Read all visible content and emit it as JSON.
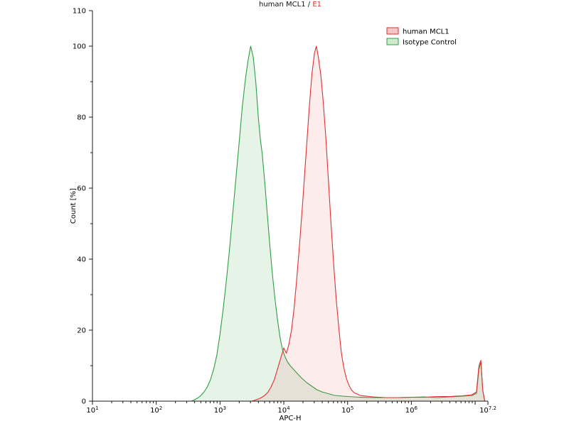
{
  "title": {
    "main": "human MCL1 / ",
    "sample": "E1",
    "sample_color": "#e03030"
  },
  "chart_data": {
    "type": "area",
    "subtype": "flow-cytometry-histogram",
    "title": "human MCL1 / E1",
    "xlabel": "APC-H",
    "ylabel": "Count [%]",
    "x_scale": "log10",
    "xlim_log": [
      1,
      7.2
    ],
    "ylim": [
      0,
      110
    ],
    "grid": false,
    "legend_position": "top-right",
    "axis_color": "#1a1a1a",
    "x_tick_base": "10",
    "x_ticks": [
      {
        "log": 1,
        "sup": "1"
      },
      {
        "log": 2,
        "sup": "2"
      },
      {
        "log": 3,
        "sup": "3"
      },
      {
        "log": 4,
        "sup": "4"
      },
      {
        "log": 5,
        "sup": "5"
      },
      {
        "log": 6,
        "sup": "6"
      },
      {
        "log": 7.2,
        "sup": "7.2"
      }
    ],
    "y_tick_labels": [
      0,
      20,
      40,
      60,
      80,
      100,
      110
    ],
    "series": [
      {
        "id": "human-mcl1",
        "name": "human MCL1",
        "stroke": "#e03030",
        "fill": "rgba(224,64,64,0.10)",
        "legend_fill": "#f6c6c6",
        "points": [
          [
            3.5,
            0
          ],
          [
            3.55,
            0.3
          ],
          [
            3.6,
            0.6
          ],
          [
            3.65,
            1.0
          ],
          [
            3.7,
            1.6
          ],
          [
            3.75,
            2.5
          ],
          [
            3.8,
            4.0
          ],
          [
            3.85,
            6.0
          ],
          [
            3.9,
            9.0
          ],
          [
            3.95,
            12.0
          ],
          [
            4.0,
            15.0
          ],
          [
            4.04,
            13.5
          ],
          [
            4.08,
            16.0
          ],
          [
            4.12,
            20.0
          ],
          [
            4.16,
            26.0
          ],
          [
            4.2,
            34.0
          ],
          [
            4.25,
            45.0
          ],
          [
            4.3,
            57.0
          ],
          [
            4.35,
            70.0
          ],
          [
            4.4,
            83.0
          ],
          [
            4.44,
            92.0
          ],
          [
            4.48,
            98.0
          ],
          [
            4.51,
            100.0
          ],
          [
            4.54,
            97.0
          ],
          [
            4.58,
            92.0
          ],
          [
            4.62,
            84.0
          ],
          [
            4.66,
            74.0
          ],
          [
            4.7,
            62.0
          ],
          [
            4.74,
            50.0
          ],
          [
            4.78,
            39.0
          ],
          [
            4.82,
            29.0
          ],
          [
            4.86,
            21.0
          ],
          [
            4.9,
            14.0
          ],
          [
            4.94,
            9.5
          ],
          [
            4.98,
            6.5
          ],
          [
            5.02,
            4.5
          ],
          [
            5.06,
            3.2
          ],
          [
            5.1,
            2.4
          ],
          [
            5.2,
            1.6
          ],
          [
            5.4,
            1.2
          ],
          [
            5.6,
            1.0
          ],
          [
            5.8,
            1.0
          ],
          [
            6.0,
            1.1
          ],
          [
            6.2,
            1.1
          ],
          [
            6.4,
            1.3
          ],
          [
            6.6,
            1.3
          ],
          [
            6.8,
            1.5
          ],
          [
            6.95,
            1.8
          ],
          [
            7.02,
            2.6
          ],
          [
            7.06,
            10.0
          ],
          [
            7.09,
            11.5
          ],
          [
            7.12,
            3.0
          ],
          [
            7.15,
            0
          ]
        ]
      },
      {
        "id": "isotype-control",
        "name": "Isotype Control",
        "stroke": "#2f9e44",
        "fill": "rgba(60,160,70,0.13)",
        "legend_fill": "#cfe9cf",
        "points": [
          [
            2.55,
            0
          ],
          [
            2.6,
            0.4
          ],
          [
            2.65,
            0.9
          ],
          [
            2.7,
            1.6
          ],
          [
            2.75,
            2.6
          ],
          [
            2.8,
            4.0
          ],
          [
            2.85,
            6.0
          ],
          [
            2.9,
            9.0
          ],
          [
            2.95,
            13.0
          ],
          [
            3.0,
            19.0
          ],
          [
            3.05,
            26.0
          ],
          [
            3.1,
            34.0
          ],
          [
            3.15,
            43.0
          ],
          [
            3.2,
            53.0
          ],
          [
            3.25,
            63.0
          ],
          [
            3.3,
            73.0
          ],
          [
            3.35,
            83.0
          ],
          [
            3.4,
            91.0
          ],
          [
            3.44,
            96.0
          ],
          [
            3.48,
            100.0
          ],
          [
            3.52,
            97.0
          ],
          [
            3.56,
            90.0
          ],
          [
            3.6,
            80.0
          ],
          [
            3.63,
            74.0
          ],
          [
            3.66,
            70.0
          ],
          [
            3.7,
            62.0
          ],
          [
            3.74,
            53.0
          ],
          [
            3.78,
            44.0
          ],
          [
            3.82,
            36.0
          ],
          [
            3.86,
            29.0
          ],
          [
            3.9,
            23.0
          ],
          [
            3.94,
            18.0
          ],
          [
            3.98,
            14.5
          ],
          [
            4.02,
            12.5
          ],
          [
            4.06,
            11.0
          ],
          [
            4.1,
            10.0
          ],
          [
            4.15,
            9.0
          ],
          [
            4.2,
            8.0
          ],
          [
            4.28,
            6.5
          ],
          [
            4.36,
            5.2
          ],
          [
            4.44,
            4.2
          ],
          [
            4.52,
            3.2
          ],
          [
            4.6,
            2.6
          ],
          [
            4.7,
            2.1
          ],
          [
            4.8,
            1.6
          ],
          [
            5.0,
            1.3
          ],
          [
            5.2,
            1.1
          ],
          [
            5.4,
            1.0
          ],
          [
            5.6,
            1.0
          ],
          [
            5.8,
            1.0
          ],
          [
            6.0,
            1.1
          ],
          [
            6.2,
            1.2
          ],
          [
            6.4,
            1.0
          ],
          [
            6.6,
            1.2
          ],
          [
            6.8,
            1.4
          ],
          [
            6.95,
            1.6
          ],
          [
            7.02,
            2.2
          ],
          [
            7.06,
            9.0
          ],
          [
            7.09,
            11.0
          ],
          [
            7.12,
            3.0
          ],
          [
            7.15,
            0
          ]
        ]
      }
    ]
  }
}
